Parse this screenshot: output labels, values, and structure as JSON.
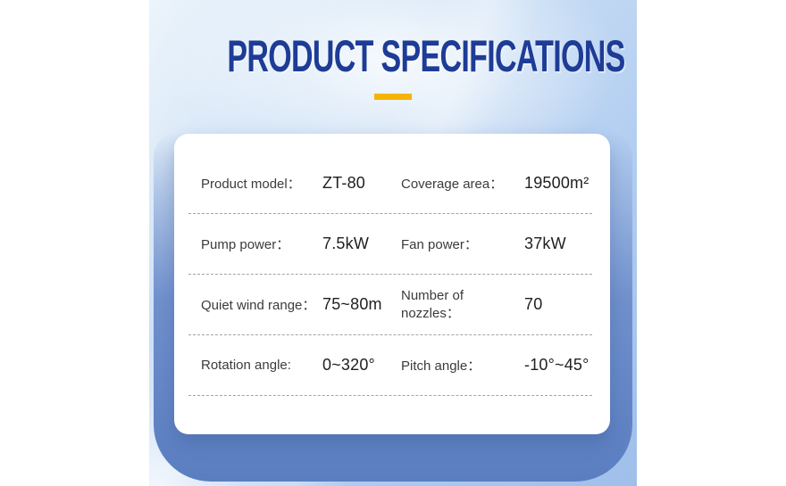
{
  "title": "PRODUCT SPECIFICATIONS",
  "colors": {
    "title_blue": "#1E3C96",
    "underline_yellow": "#F5B303",
    "frame_blue": "#5A7EC0",
    "background_light_blue": "#C6DCF4",
    "label_gray": "#3B3B3B",
    "value_black": "#1F1F1F"
  },
  "specs": {
    "rows": [
      {
        "left": {
          "label": "Product model：",
          "value": "ZT-80"
        },
        "right": {
          "label": "Coverage area：",
          "value": "19500m²"
        }
      },
      {
        "left": {
          "label": "Pump power：",
          "value": "7.5kW"
        },
        "right": {
          "label": "Fan power：",
          "value": "37kW"
        }
      },
      {
        "left": {
          "label": "Quiet wind range：",
          "value": "75~80m"
        },
        "right": {
          "label": "Number of nozzles：",
          "value": "70"
        }
      },
      {
        "left": {
          "label": "Rotation angle:",
          "value": "0~320°"
        },
        "right": {
          "label": "Pitch angle：",
          "value": "-10°~45°"
        }
      }
    ]
  }
}
